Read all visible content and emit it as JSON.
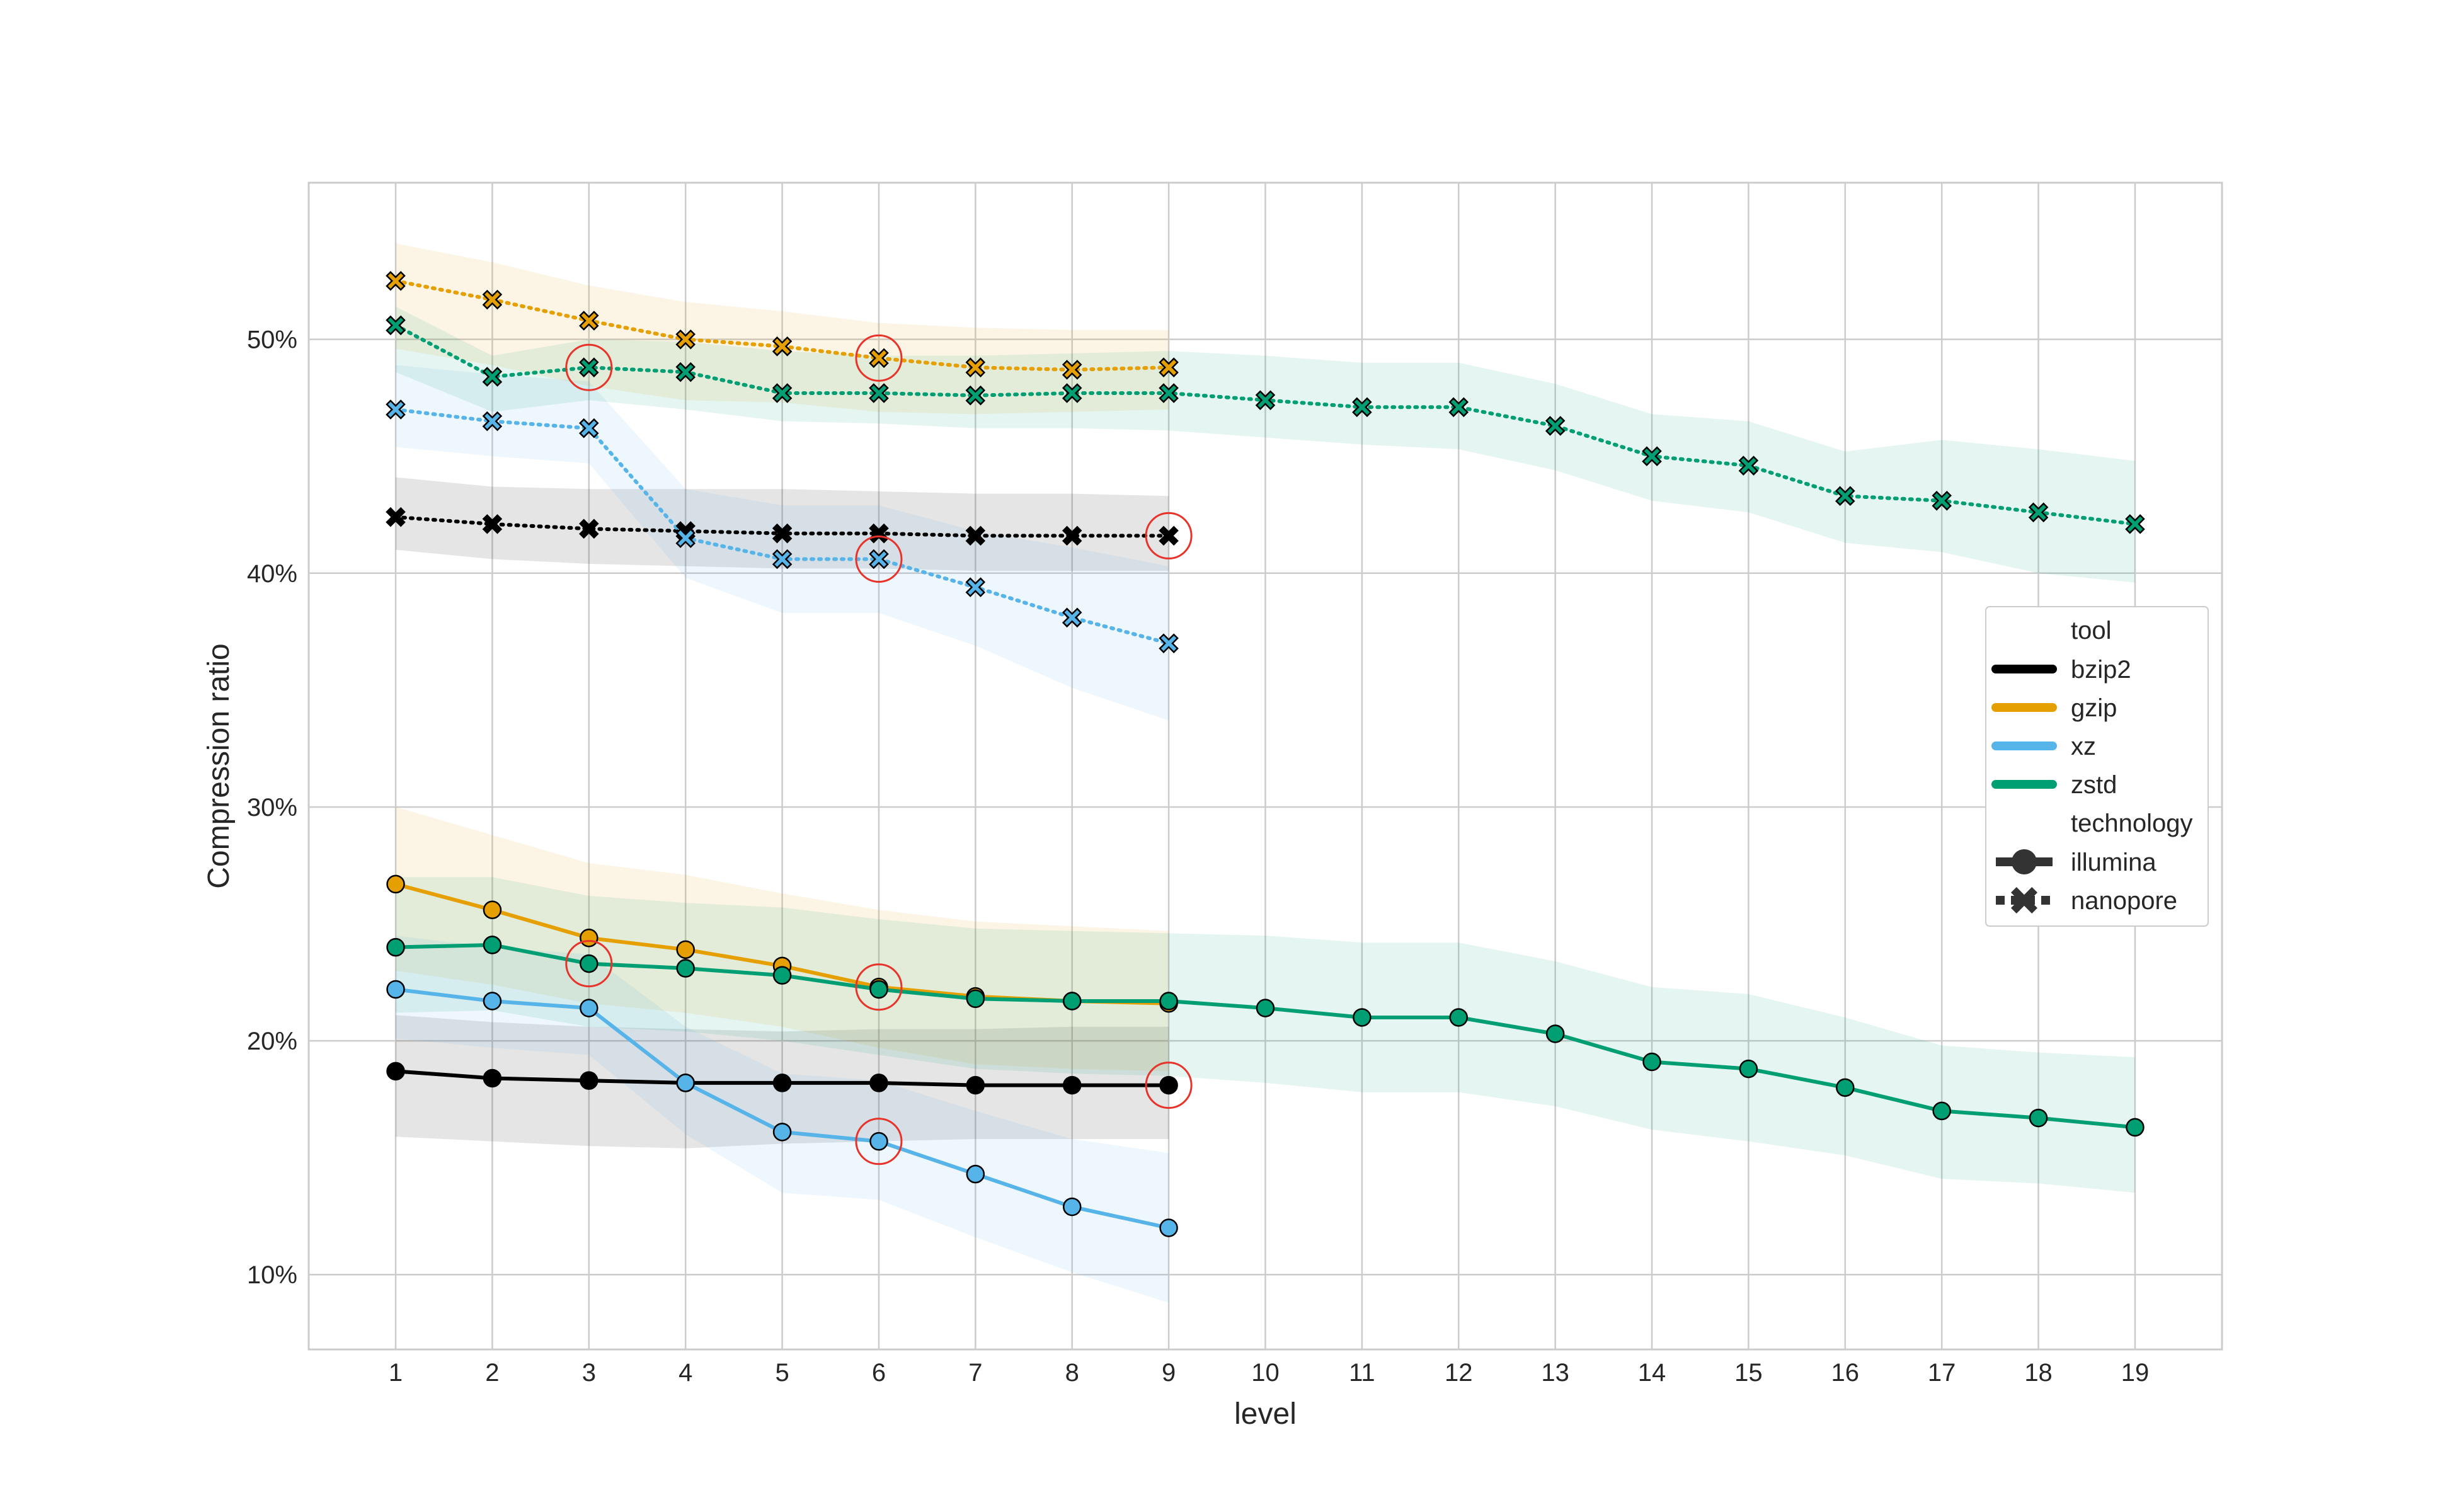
{
  "chart_data": {
    "type": "line",
    "xlabel": "level",
    "ylabel": "Compression ratio",
    "xlim": [
      0.1,
      19.9
    ],
    "ylim": [
      6.8,
      56.7
    ],
    "x_ticks": [
      1,
      2,
      3,
      4,
      5,
      6,
      7,
      8,
      9,
      10,
      11,
      12,
      13,
      14,
      15,
      16,
      17,
      18,
      19
    ],
    "y_ticks": [
      {
        "value": 10,
        "label": "10%"
      },
      {
        "value": 20,
        "label": "20%"
      },
      {
        "value": 30,
        "label": "30%"
      },
      {
        "value": 40,
        "label": "40%"
      },
      {
        "value": 50,
        "label": "50%"
      }
    ],
    "grid": true,
    "legend": {
      "position": "right",
      "tool_title": "tool",
      "tools": [
        {
          "name": "bzip2",
          "color": "#000000"
        },
        {
          "name": "gzip",
          "color": "#E69F00"
        },
        {
          "name": "xz",
          "color": "#56B4E9"
        },
        {
          "name": "zstd",
          "color": "#009E73"
        }
      ],
      "technology_title": "technology",
      "technologies": [
        {
          "name": "illumina",
          "marker": "circle",
          "line": "solid"
        },
        {
          "name": "nanopore",
          "marker": "x",
          "line": "dotted"
        }
      ]
    },
    "series": [
      {
        "tool": "bzip2",
        "technology": "nanopore",
        "x": [
          1,
          2,
          3,
          4,
          5,
          6,
          7,
          8,
          9
        ],
        "y": [
          42.4,
          42.1,
          41.9,
          41.8,
          41.7,
          41.7,
          41.6,
          41.6,
          41.6
        ],
        "lower": [
          41.0,
          40.6,
          40.4,
          40.3,
          40.2,
          40.2,
          40.1,
          40.1,
          40.1
        ],
        "upper": [
          44.1,
          43.7,
          43.6,
          43.6,
          43.6,
          43.5,
          43.4,
          43.4,
          43.3
        ],
        "highlight": [
          9
        ]
      },
      {
        "tool": "gzip",
        "technology": "nanopore",
        "x": [
          1,
          2,
          3,
          4,
          5,
          6,
          7,
          8,
          9
        ],
        "y": [
          52.5,
          51.7,
          50.8,
          50.0,
          49.7,
          49.2,
          48.8,
          48.7,
          48.8
        ],
        "lower": [
          49.6,
          48.9,
          48.0,
          47.4,
          47.3,
          46.9,
          46.8,
          46.9,
          47.0
        ],
        "upper": [
          54.1,
          53.3,
          52.3,
          51.6,
          51.2,
          50.7,
          50.5,
          50.4,
          50.4
        ],
        "highlight": [
          6
        ]
      },
      {
        "tool": "xz",
        "technology": "nanopore",
        "x": [
          1,
          2,
          3,
          4,
          5,
          6,
          7,
          8,
          9
        ],
        "y": [
          47.0,
          46.5,
          46.2,
          41.5,
          40.6,
          40.6,
          39.4,
          38.1,
          37.0
        ],
        "lower": [
          45.4,
          45.0,
          44.7,
          39.8,
          38.3,
          38.3,
          36.9,
          35.1,
          33.7
        ],
        "upper": [
          48.9,
          48.5,
          48.2,
          43.6,
          42.9,
          42.9,
          41.8,
          41.1,
          40.3
        ],
        "highlight": [
          6
        ]
      },
      {
        "tool": "zstd",
        "technology": "nanopore",
        "x": [
          1,
          2,
          3,
          4,
          5,
          6,
          7,
          8,
          9,
          10,
          11,
          12,
          13,
          14,
          15,
          16,
          17,
          18,
          19
        ],
        "y": [
          50.6,
          48.4,
          48.8,
          48.6,
          47.7,
          47.7,
          47.6,
          47.7,
          47.7,
          47.4,
          47.1,
          47.1,
          46.3,
          45.0,
          44.6,
          43.3,
          43.1,
          42.6,
          42.1
        ],
        "lower": [
          48.6,
          46.9,
          47.4,
          47.0,
          46.5,
          46.4,
          46.2,
          46.2,
          46.1,
          45.8,
          45.5,
          45.3,
          44.4,
          43.1,
          42.6,
          41.3,
          40.9,
          40.0,
          39.6
        ],
        "upper": [
          51.4,
          49.3,
          50.0,
          49.9,
          49.5,
          49.3,
          49.3,
          49.4,
          49.5,
          49.3,
          49.0,
          49.0,
          48.1,
          46.8,
          46.5,
          45.2,
          45.7,
          45.3,
          44.8
        ],
        "highlight": [
          3
        ]
      },
      {
        "tool": "bzip2",
        "technology": "illumina",
        "x": [
          1,
          2,
          3,
          4,
          5,
          6,
          7,
          8,
          9
        ],
        "y": [
          18.7,
          18.4,
          18.3,
          18.2,
          18.2,
          18.2,
          18.1,
          18.1,
          18.1
        ],
        "lower": [
          15.9,
          15.7,
          15.5,
          15.4,
          15.6,
          15.7,
          15.8,
          15.8,
          15.8
        ],
        "upper": [
          21.1,
          20.8,
          20.6,
          20.5,
          20.4,
          20.5,
          20.5,
          20.6,
          20.6
        ],
        "highlight": [
          9
        ]
      },
      {
        "tool": "gzip",
        "technology": "illumina",
        "x": [
          1,
          2,
          3,
          4,
          5,
          6,
          7,
          8,
          9
        ],
        "y": [
          26.7,
          25.6,
          24.4,
          23.9,
          23.2,
          22.3,
          21.9,
          21.7,
          21.6
        ],
        "lower": [
          23.0,
          22.4,
          21.6,
          21.2,
          20.6,
          19.7,
          19.0,
          18.8,
          18.7
        ],
        "upper": [
          30.0,
          28.8,
          27.6,
          27.1,
          26.3,
          25.6,
          25.1,
          24.9,
          24.7
        ],
        "highlight": [
          6
        ]
      },
      {
        "tool": "xz",
        "technology": "illumina",
        "x": [
          1,
          2,
          3,
          4,
          5,
          6,
          7,
          8,
          9
        ],
        "y": [
          22.2,
          21.7,
          21.4,
          18.2,
          16.1,
          15.7,
          14.3,
          12.9,
          12.0
        ],
        "lower": [
          20.1,
          19.7,
          19.4,
          16.0,
          13.5,
          13.2,
          11.6,
          10.1,
          8.8
        ],
        "upper": [
          24.5,
          24.0,
          23.7,
          20.6,
          18.6,
          18.3,
          17.0,
          15.8,
          15.2
        ],
        "highlight": [
          6
        ]
      },
      {
        "tool": "zstd",
        "technology": "illumina",
        "x": [
          1,
          2,
          3,
          4,
          5,
          6,
          7,
          8,
          9,
          10,
          11,
          12,
          13,
          14,
          15,
          16,
          17,
          18,
          19
        ],
        "y": [
          24.0,
          24.1,
          23.3,
          23.1,
          22.8,
          22.2,
          21.8,
          21.7,
          21.7,
          21.4,
          21.0,
          21.0,
          20.3,
          19.1,
          18.8,
          18.0,
          17.0,
          16.7,
          16.3
        ],
        "lower": [
          21.2,
          21.3,
          20.6,
          20.4,
          20.0,
          19.4,
          18.8,
          18.6,
          18.5,
          18.2,
          17.8,
          17.8,
          17.2,
          16.2,
          15.7,
          15.1,
          14.1,
          13.9,
          13.5
        ],
        "upper": [
          27.0,
          27.0,
          26.2,
          25.9,
          25.7,
          25.2,
          24.8,
          24.7,
          24.6,
          24.5,
          24.2,
          24.2,
          23.4,
          22.3,
          22.0,
          21.0,
          19.8,
          19.5,
          19.3
        ],
        "highlight": [
          3
        ]
      }
    ]
  }
}
